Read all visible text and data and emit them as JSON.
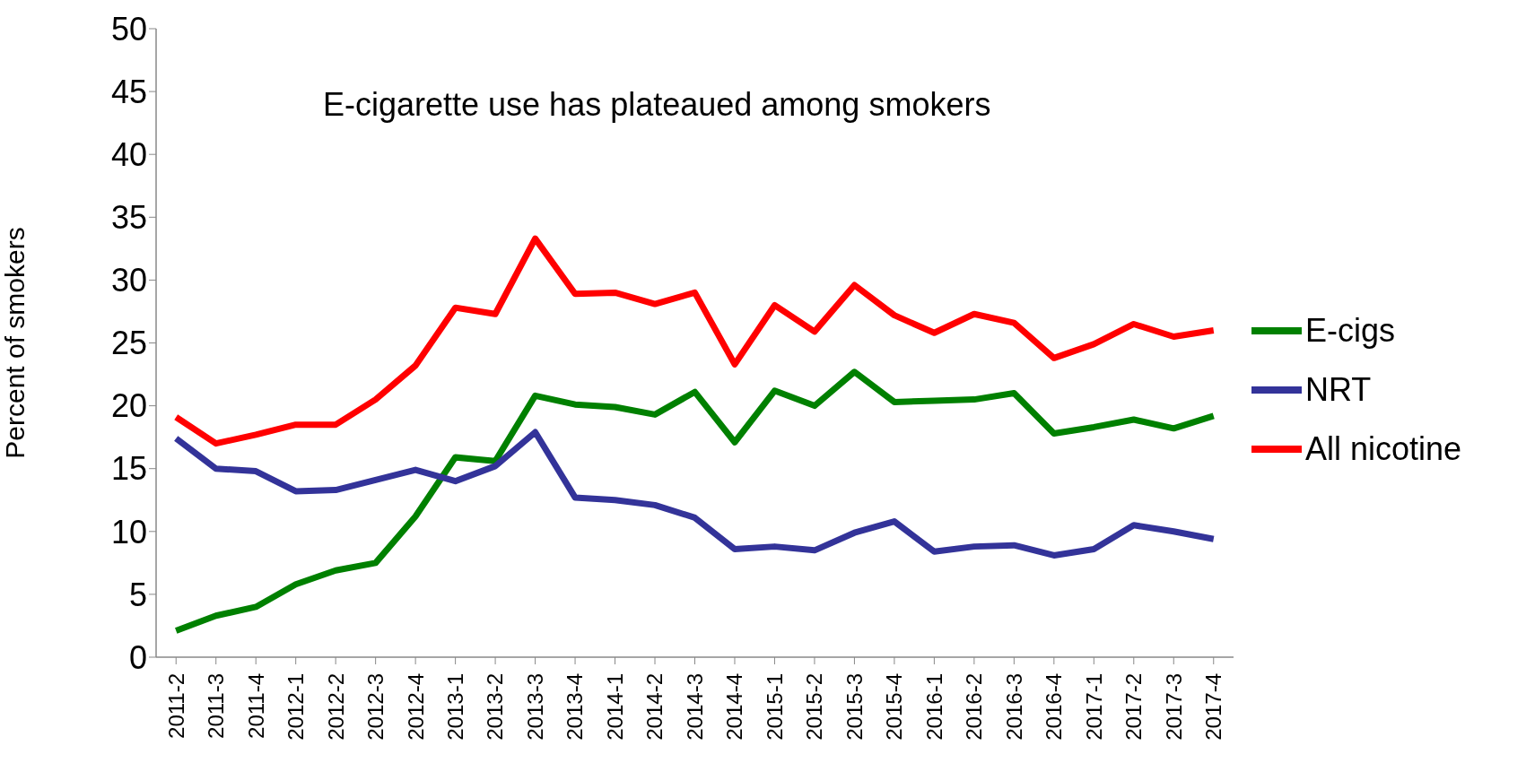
{
  "chart_data": {
    "type": "line",
    "ylabel": "Percent of smokers",
    "annotations": [
      "E-cigarette use has plateaued among smokers"
    ],
    "categories": [
      "2011-2",
      "2011-3",
      "2011-4",
      "2012-1",
      "2012-2",
      "2012-3",
      "2012-4",
      "2013-1",
      "2013-2",
      "2013-3",
      "2013-4",
      "2014-1",
      "2014-2",
      "2014-3",
      "2014-4",
      "2015-1",
      "2015-2",
      "2015-3",
      "2015-4",
      "2016-1",
      "2016-2",
      "2016-3",
      "2016-4",
      "2017-1",
      "2017-2",
      "2017-3",
      "2017-4"
    ],
    "series": [
      {
        "name": "E-cigs",
        "color": "#008000",
        "values": [
          2.1,
          3.3,
          4.0,
          5.8,
          6.9,
          7.5,
          11.2,
          15.9,
          15.6,
          20.8,
          20.1,
          19.9,
          19.3,
          21.1,
          17.1,
          21.2,
          20.0,
          22.7,
          20.3,
          20.4,
          20.5,
          21.0,
          17.8,
          18.3,
          18.9,
          18.2,
          19.2
        ]
      },
      {
        "name": "NRT",
        "color": "#333399",
        "values": [
          17.4,
          15.0,
          14.8,
          13.2,
          13.3,
          14.1,
          14.9,
          14.0,
          15.2,
          17.9,
          12.7,
          12.5,
          12.1,
          11.1,
          8.6,
          8.8,
          8.5,
          9.9,
          10.8,
          8.4,
          8.8,
          8.9,
          8.1,
          8.6,
          10.5,
          10.0,
          9.4
        ]
      },
      {
        "name": "All nicotine",
        "color": "#ff0000",
        "values": [
          19.1,
          17.0,
          17.7,
          18.5,
          18.5,
          20.5,
          23.2,
          27.8,
          27.3,
          33.3,
          28.9,
          29.0,
          28.1,
          29.0,
          23.3,
          28.0,
          25.9,
          29.6,
          27.2,
          25.8,
          27.3,
          26.6,
          23.8,
          24.9,
          26.5,
          25.5,
          26.0
        ]
      }
    ],
    "ylim": [
      0,
      50
    ],
    "yticks": [
      0,
      5,
      10,
      15,
      20,
      25,
      30,
      35,
      40,
      45,
      50
    ],
    "grid": false,
    "legend": "right",
    "marker": "none",
    "line_style": "solid"
  }
}
